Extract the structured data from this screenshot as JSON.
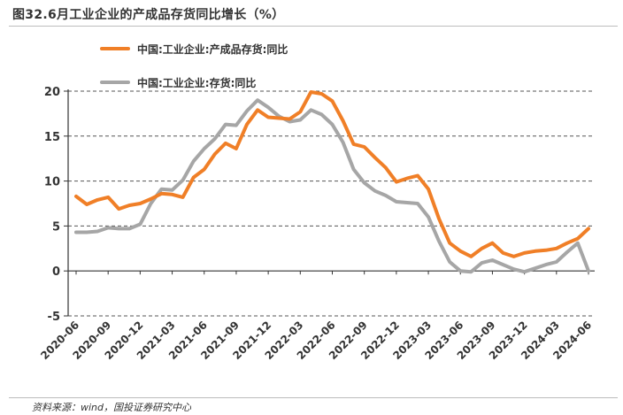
{
  "figure": {
    "title": "图32.6月工业企业的产成品存货同比增长（%）",
    "source": "资料来源：wind，国投证券研究中心"
  },
  "colors": {
    "series1": "#f07f27",
    "series2": "#a6a6a6"
  },
  "chart_data": {
    "type": "line",
    "ylim": [
      -5,
      20
    ],
    "yticks": [
      "20",
      "15",
      "10",
      "5",
      "0",
      "-5"
    ],
    "xtick_labels": [
      "2020-06",
      "2020-09",
      "2020-12",
      "2021-03",
      "2021-06",
      "2021-09",
      "2021-12",
      "2022-03",
      "2022-06",
      "2022-09",
      "2022-12",
      "2023-03",
      "2023-06",
      "2023-09",
      "2023-12",
      "2024-03",
      "2024-06"
    ],
    "x": [
      "2020-06",
      "2020-07",
      "2020-08",
      "2020-09",
      "2020-10",
      "2020-11",
      "2020-12",
      "2021-01",
      "2021-02",
      "2021-03",
      "2021-04",
      "2021-05",
      "2021-06",
      "2021-07",
      "2021-08",
      "2021-09",
      "2021-10",
      "2021-11",
      "2021-12",
      "2022-01",
      "2022-02",
      "2022-03",
      "2022-04",
      "2022-05",
      "2022-06",
      "2022-07",
      "2022-08",
      "2022-09",
      "2022-10",
      "2022-11",
      "2022-12",
      "2023-01",
      "2023-02",
      "2023-03",
      "2023-04",
      "2023-05",
      "2023-06",
      "2023-07",
      "2023-08",
      "2023-09",
      "2023-10",
      "2023-11",
      "2023-12",
      "2024-01",
      "2024-02",
      "2024-03",
      "2024-04",
      "2024-05",
      "2024-06"
    ],
    "grid": "horizontal dashed",
    "legend_position": "top-left",
    "series": [
      {
        "name": "中国:工业企业:产成品存货:同比",
        "values": [
          8.3,
          7.4,
          7.9,
          8.2,
          6.9,
          7.3,
          7.5,
          8.0,
          8.6,
          8.5,
          8.2,
          10.4,
          11.3,
          13.0,
          14.2,
          13.6,
          16.3,
          17.9,
          17.1,
          17.0,
          16.9,
          17.7,
          19.9,
          19.7,
          18.9,
          16.7,
          14.1,
          13.8,
          12.6,
          11.5,
          9.9,
          10.3,
          10.6,
          9.1,
          5.8,
          3.1,
          2.2,
          1.6,
          2.5,
          3.1,
          2.0,
          1.6,
          2.0,
          2.2,
          2.3,
          2.5,
          3.1,
          3.6,
          4.7
        ]
      },
      {
        "name": "中国:工业企业:存货:同比",
        "values": [
          4.3,
          4.3,
          4.4,
          4.8,
          4.7,
          4.7,
          5.2,
          7.5,
          9.1,
          9.0,
          10.1,
          12.2,
          13.6,
          14.7,
          16.3,
          16.2,
          17.8,
          19.0,
          18.2,
          17.2,
          16.6,
          16.8,
          17.9,
          17.4,
          16.3,
          14.3,
          11.3,
          9.8,
          8.9,
          8.4,
          7.7,
          7.6,
          7.5,
          6.0,
          3.3,
          1.0,
          0.0,
          -0.1,
          0.9,
          1.2,
          0.7,
          0.2,
          -0.1,
          0.3,
          0.7,
          1.0,
          2.1,
          3.1,
          0.0
        ]
      }
    ]
  }
}
